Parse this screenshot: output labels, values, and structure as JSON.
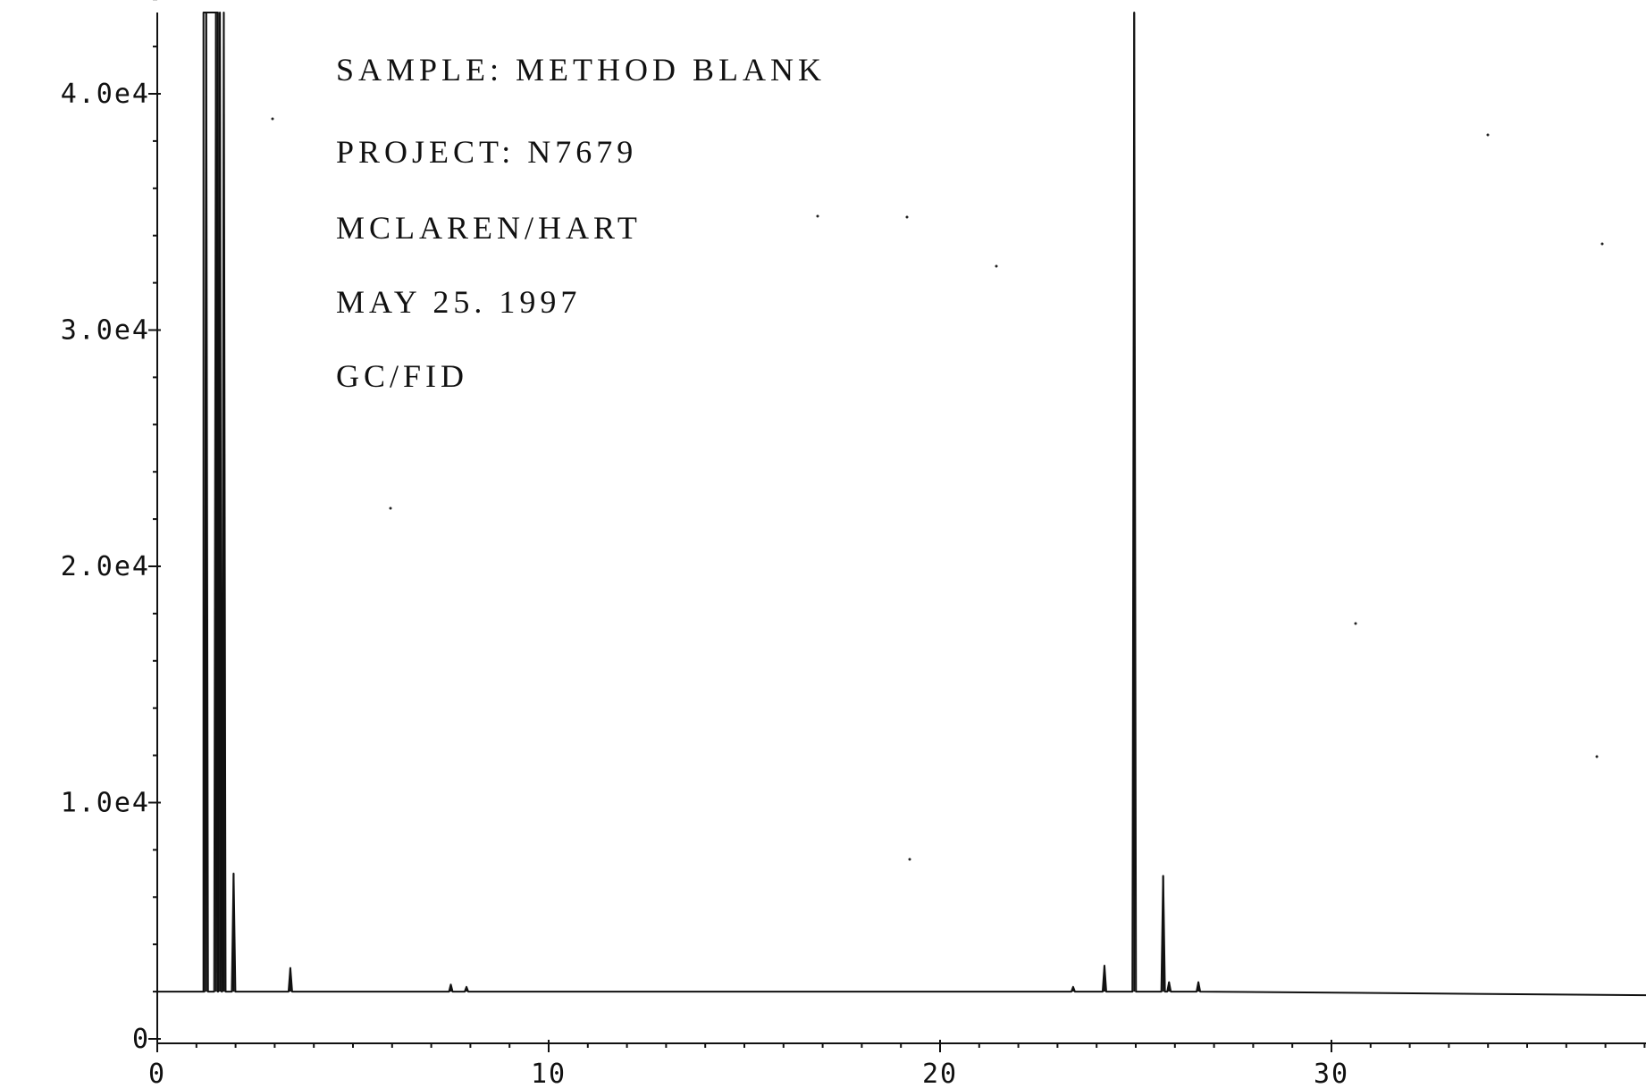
{
  "chart_data": {
    "type": "line",
    "title": "",
    "xlabel": "",
    "ylabel": "",
    "xlim": [
      0,
      38
    ],
    "ylim": [
      0,
      44000
    ],
    "x_ticks": [
      0,
      10,
      20,
      30
    ],
    "y_ticks": [
      0,
      10000,
      20000,
      30000,
      40000
    ],
    "x_tick_labels": [
      "0",
      "10",
      "20",
      "30"
    ],
    "y_tick_labels": [
      "0",
      "1.0e4",
      "2.0e4",
      "3.0e4",
      "4.0e4"
    ],
    "grid": false,
    "annotations": [
      "SAMPLE:  METHOD BLANK",
      "PROJECT:  N7679",
      "MCLAREN/HART",
      "MAY 25. 1997",
      "GC/FID"
    ],
    "series": [
      {
        "baseline": 2000,
        "peaks": [
          {
            "x": 1.25,
            "y": 44000
          },
          {
            "x": 1.5,
            "y": 44000
          },
          {
            "x": 1.6,
            "y": 44000
          },
          {
            "x": 1.7,
            "y": 44000
          },
          {
            "x": 1.95,
            "y": 7000
          },
          {
            "x": 3.4,
            "y": 3000
          },
          {
            "x": 7.5,
            "y": 2300
          },
          {
            "x": 7.9,
            "y": 2200
          },
          {
            "x": 23.4,
            "y": 2200
          },
          {
            "x": 24.2,
            "y": 3100
          },
          {
            "x": 24.96,
            "y": 44000
          },
          {
            "x": 25.7,
            "y": 6900
          },
          {
            "x": 25.85,
            "y": 2400
          },
          {
            "x": 26.6,
            "y": 2400
          }
        ]
      }
    ]
  }
}
